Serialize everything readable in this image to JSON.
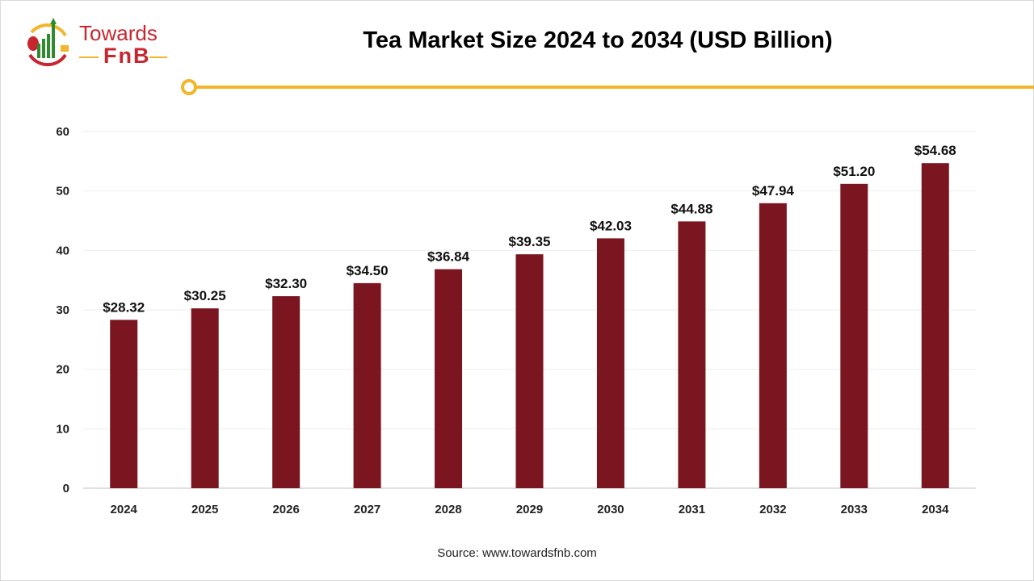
{
  "brand": {
    "line1": "Towards",
    "line2": "FnB",
    "accent_color": "#f2b62a",
    "red": "#c8262e",
    "green": "#2e8b2e"
  },
  "chart_data": {
    "type": "bar",
    "title": "Tea Market Size 2024 to 2034 (USD Billion)",
    "categories": [
      "2024",
      "2025",
      "2026",
      "2027",
      "2028",
      "2029",
      "2030",
      "2031",
      "2032",
      "2033",
      "2034"
    ],
    "values": [
      28.32,
      30.25,
      32.3,
      34.5,
      36.84,
      39.35,
      42.03,
      44.88,
      47.94,
      51.2,
      54.68
    ],
    "data_labels": [
      "$28.32",
      "$30.25",
      "$32.30",
      "$34.50",
      "$36.84",
      "$39.35",
      "$42.03",
      "$44.88",
      "$47.94",
      "$51.20",
      "$54.68"
    ],
    "xlabel": "",
    "ylabel": "",
    "ylim": [
      0,
      60
    ],
    "yticks": [
      0,
      10,
      20,
      30,
      40,
      50,
      60
    ],
    "grid": true,
    "bar_color": "#7b1520"
  },
  "source": "Source: www.towardsfnb.com"
}
